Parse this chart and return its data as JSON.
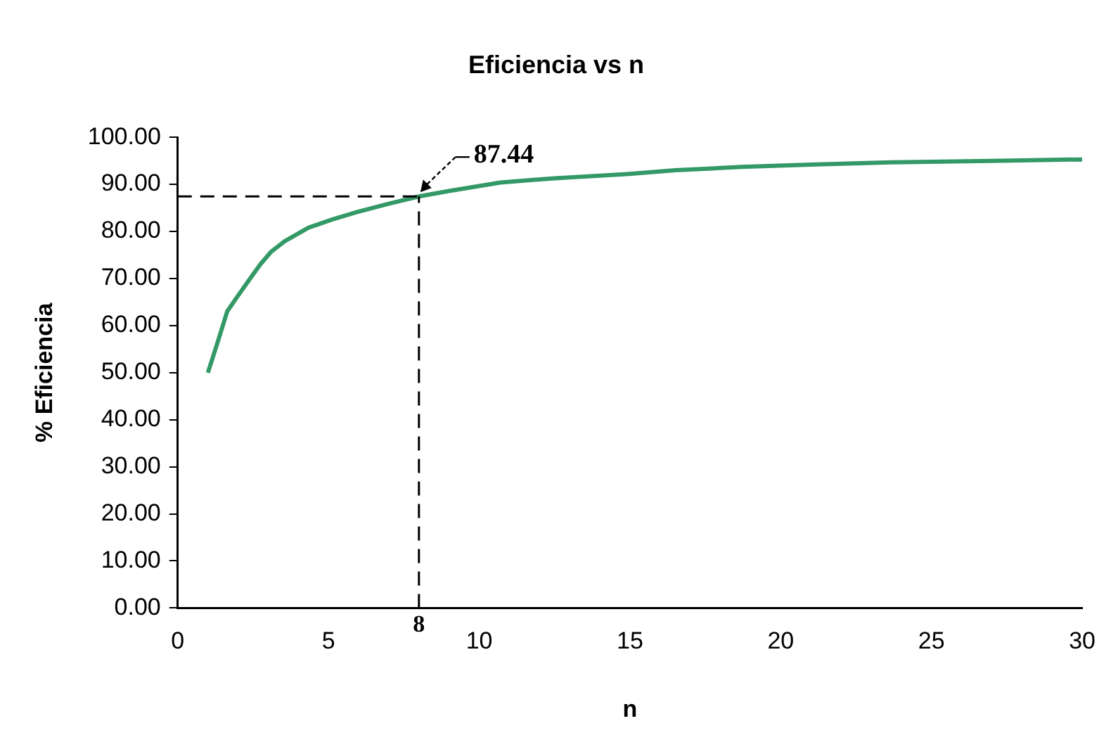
{
  "chart_data": {
    "type": "line",
    "title": "Eficiencia vs n",
    "xlabel": "n",
    "ylabel": "% Eficiencia",
    "series": [
      {
        "color": "#339966",
        "x": [
          1,
          1.3,
          1.64,
          1.95,
          2.4,
          2.75,
          3.1,
          3.54,
          4.34,
          5.1,
          5.93,
          7,
          8,
          9,
          10.7,
          12.5,
          14.9,
          16.5,
          18.7,
          21,
          23.7,
          27,
          30
        ],
        "values": [
          50,
          56,
          63,
          65.9,
          70,
          73.1,
          75.7,
          77.9,
          80.8,
          82.5,
          84.1,
          85.9,
          87.44,
          88.6,
          90.4,
          91.3,
          92.2,
          93,
          93.7,
          94.2,
          94.7,
          95,
          95.3
        ]
      }
    ],
    "xlim": [
      0,
      30
    ],
    "xticks": [
      0,
      5,
      10,
      15,
      20,
      25,
      30
    ],
    "ylim": [
      0,
      100
    ],
    "yticks": [
      {
        "value": 0,
        "label": "0.00"
      },
      {
        "value": 10,
        "label": "10.00"
      },
      {
        "value": 20,
        "label": "20.00"
      },
      {
        "value": 30,
        "label": "30.00"
      },
      {
        "value": 40,
        "label": "40.00"
      },
      {
        "value": 50,
        "label": "50.00"
      },
      {
        "value": 60,
        "label": "60.00"
      },
      {
        "value": 70,
        "label": "70.00"
      },
      {
        "value": 80,
        "label": "80.00"
      },
      {
        "value": 90,
        "label": "90.00"
      },
      {
        "value": 100,
        "label": "100.00"
      }
    ],
    "ref_lines": [
      {
        "axis": "x",
        "value": 8,
        "label": "8",
        "line_style": "dashed",
        "color": "#000000"
      },
      {
        "axis": "y",
        "value": 87.44,
        "line_style": "dashed",
        "color": "#000000"
      }
    ],
    "annotations": [
      {
        "text": "87.44",
        "x": 8,
        "y": 87.44
      }
    ],
    "grid": false,
    "legend": false,
    "marker": "none",
    "line_style": "solid"
  }
}
